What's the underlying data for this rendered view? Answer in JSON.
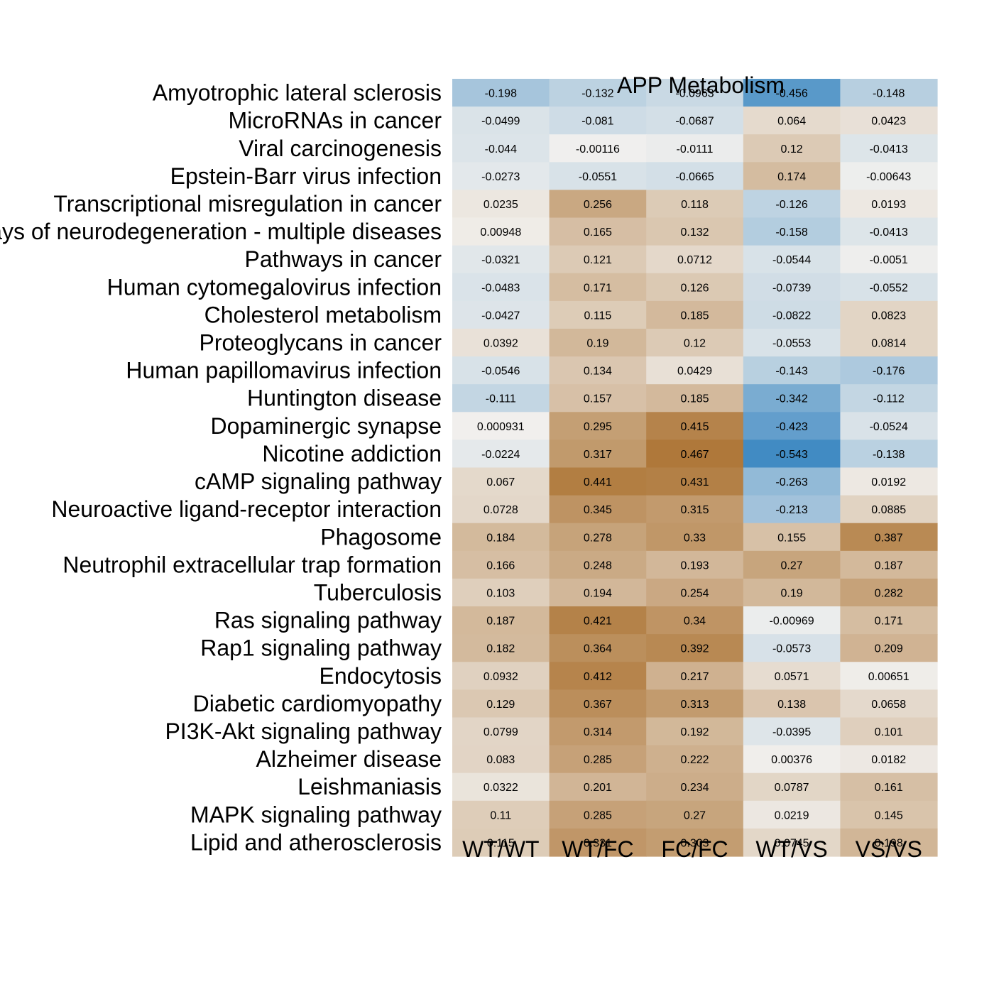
{
  "chart_data": {
    "type": "heatmap",
    "title": "APP Metabolism",
    "columns": [
      "WT/WT",
      "WT/FC",
      "FC/FC",
      "WT/VS",
      "VS/VS"
    ],
    "rows": [
      "Amyotrophic lateral sclerosis",
      "MicroRNAs in cancer",
      "Viral carcinogenesis",
      "Epstein-Barr virus infection",
      "Transcriptional misregulation in cancer",
      "Pathways of neurodegeneration - multiple diseases",
      "Pathways in cancer",
      "Human cytomegalovirus infection",
      "Cholesterol metabolism",
      "Proteoglycans in cancer",
      "Human papillomavirus infection",
      "Huntington disease",
      "Dopaminergic synapse",
      "Nicotine addiction",
      "cAMP signaling pathway",
      "Neuroactive ligand-receptor interaction",
      "Phagosome",
      "Neutrophil extracellular trap formation",
      "Tuberculosis",
      "Ras signaling pathway",
      "Rap1 signaling pathway",
      "Endocytosis",
      "Diabetic cardiomyopathy",
      "PI3K-Akt signaling pathway",
      "Alzheimer disease",
      "Leishmaniasis",
      "MAPK signaling pathway",
      "Lipid and atherosclerosis"
    ],
    "values": [
      [
        "-0.198",
        "-0.132",
        "-0.0963",
        "-0.456",
        "-0.148"
      ],
      [
        "-0.0499",
        "-0.081",
        "-0.0687",
        "0.064",
        "0.0423"
      ],
      [
        "-0.044",
        "-0.00116",
        "-0.0111",
        "0.12",
        "-0.0413"
      ],
      [
        "-0.0273",
        "-0.0551",
        "-0.0665",
        "0.174",
        "-0.00643"
      ],
      [
        "0.0235",
        "0.256",
        "0.118",
        "-0.126",
        "0.0193"
      ],
      [
        "0.00948",
        "0.165",
        "0.132",
        "-0.158",
        "-0.0413"
      ],
      [
        "-0.0321",
        "0.121",
        "0.0712",
        "-0.0544",
        "-0.0051"
      ],
      [
        "-0.0483",
        "0.171",
        "0.126",
        "-0.0739",
        "-0.0552"
      ],
      [
        "-0.0427",
        "0.115",
        "0.185",
        "-0.0822",
        "0.0823"
      ],
      [
        "0.0392",
        "0.19",
        "0.12",
        "-0.0553",
        "0.0814"
      ],
      [
        "-0.0546",
        "0.134",
        "0.0429",
        "-0.143",
        "-0.176"
      ],
      [
        "-0.111",
        "0.157",
        "0.185",
        "-0.342",
        "-0.112"
      ],
      [
        "0.000931",
        "0.295",
        "0.415",
        "-0.423",
        "-0.0524"
      ],
      [
        "-0.0224",
        "0.317",
        "0.467",
        "-0.543",
        "-0.138"
      ],
      [
        "0.067",
        "0.441",
        "0.431",
        "-0.263",
        "0.0192"
      ],
      [
        "0.0728",
        "0.345",
        "0.315",
        "-0.213",
        "0.0885"
      ],
      [
        "0.184",
        "0.278",
        "0.33",
        "0.155",
        "0.387"
      ],
      [
        "0.166",
        "0.248",
        "0.193",
        "0.27",
        "0.187"
      ],
      [
        "0.103",
        "0.194",
        "0.254",
        "0.19",
        "0.282"
      ],
      [
        "0.187",
        "0.421",
        "0.34",
        "-0.00969",
        "0.171"
      ],
      [
        "0.182",
        "0.364",
        "0.392",
        "-0.0573",
        "0.209"
      ],
      [
        "0.0932",
        "0.412",
        "0.217",
        "0.0571",
        "0.00651"
      ],
      [
        "0.129",
        "0.367",
        "0.313",
        "0.138",
        "0.0658"
      ],
      [
        "0.0799",
        "0.314",
        "0.192",
        "-0.0395",
        "0.101"
      ],
      [
        "0.083",
        "0.285",
        "0.222",
        "0.00376",
        "0.0182"
      ],
      [
        "0.0322",
        "0.201",
        "0.234",
        "0.0787",
        "0.161"
      ],
      [
        "0.11",
        "0.285",
        "0.27",
        "0.0219",
        "0.145"
      ],
      [
        "0.115",
        "0.331",
        "0.303",
        "0.0745",
        "0.198"
      ]
    ],
    "color_scale": {
      "negative": "#3f8ac3",
      "neutral": "#f1f0ee",
      "positive": "#a5661f",
      "limit": 0.55
    },
    "legend": false,
    "grid": false
  }
}
